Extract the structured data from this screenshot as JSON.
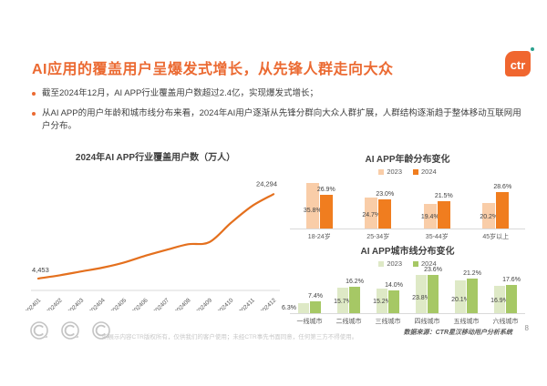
{
  "slide": {
    "title": "AI应用的覆盖用户呈爆发式增长，从先锋人群走向大众",
    "logo_text": "ctr",
    "bullets": [
      "截至2024年12月，AI APP行业覆盖用户数超过2.4亿，实现爆发式增长；",
      "从AI APP的用户年龄和城市线分布来看，2024年AI用户逐渐从先锋分群向大众人群扩展，人群结构逐渐趋于整体移动互联网用户分布。"
    ],
    "page_number": "8"
  },
  "colors": {
    "title_orange": "#EB6A32",
    "logo_orange": "#F0662F",
    "logo_dot_teal": "#2BA18F",
    "line_orange": "#E4701E",
    "axis_gray": "#D9D9D9",
    "label_gray": "#595959"
  },
  "chart_data": [
    {
      "type": "line",
      "title": "2024年AI APP行业覆盖用户数（万人）",
      "x": [
        "202401",
        "202402",
        "202403",
        "202404",
        "202405",
        "202406",
        "202407",
        "202408",
        "202409",
        "202410",
        "202411",
        "202412"
      ],
      "values": [
        4453,
        5200,
        6100,
        7000,
        8200,
        9800,
        11200,
        12500,
        13000,
        17500,
        21500,
        24294
      ],
      "point_labels": {
        "first": "4,453",
        "last": "24,294"
      },
      "line_color": "#E4701E",
      "ylim": [
        2500,
        26500
      ],
      "grid": false,
      "xlabel": "",
      "ylabel": ""
    },
    {
      "type": "bar",
      "title": "AI APP年龄分布变化",
      "categories": [
        "18-24岁",
        "25-34岁",
        "35-44岁",
        "45岁以上"
      ],
      "series": [
        {
          "name": "2023",
          "color": "#F9CDA8",
          "values": [
            35.8,
            24.7,
            19.4,
            20.2
          ]
        },
        {
          "name": "2024",
          "color": "#F07D1F",
          "values": [
            26.9,
            23.0,
            21.5,
            28.6
          ]
        }
      ],
      "unit": "%",
      "legend_position": "top",
      "grid": false
    },
    {
      "type": "bar",
      "title": "AI APP城市线分布变化",
      "categories": [
        "一线城市",
        "二线城市",
        "三线城市",
        "四线城市",
        "五线城市",
        "六线城市"
      ],
      "series": [
        {
          "name": "2023",
          "color": "#DEE9C6",
          "values": [
            6.3,
            15.7,
            15.2,
            23.8,
            20.1,
            16.9
          ]
        },
        {
          "name": "2024",
          "color": "#A6C865",
          "values": [
            7.4,
            16.2,
            14.0,
            23.6,
            21.2,
            17.6
          ]
        }
      ],
      "unit": "%",
      "legend_position": "top",
      "grid": false
    }
  ],
  "footer": {
    "disclaimer": "所展示内容CTR版权所有，仅供我们的客户使用；未经CTR事先书面同意，任何第三方不得使用。",
    "source": "数据来源：CTR星汉移动用户分析系统"
  }
}
